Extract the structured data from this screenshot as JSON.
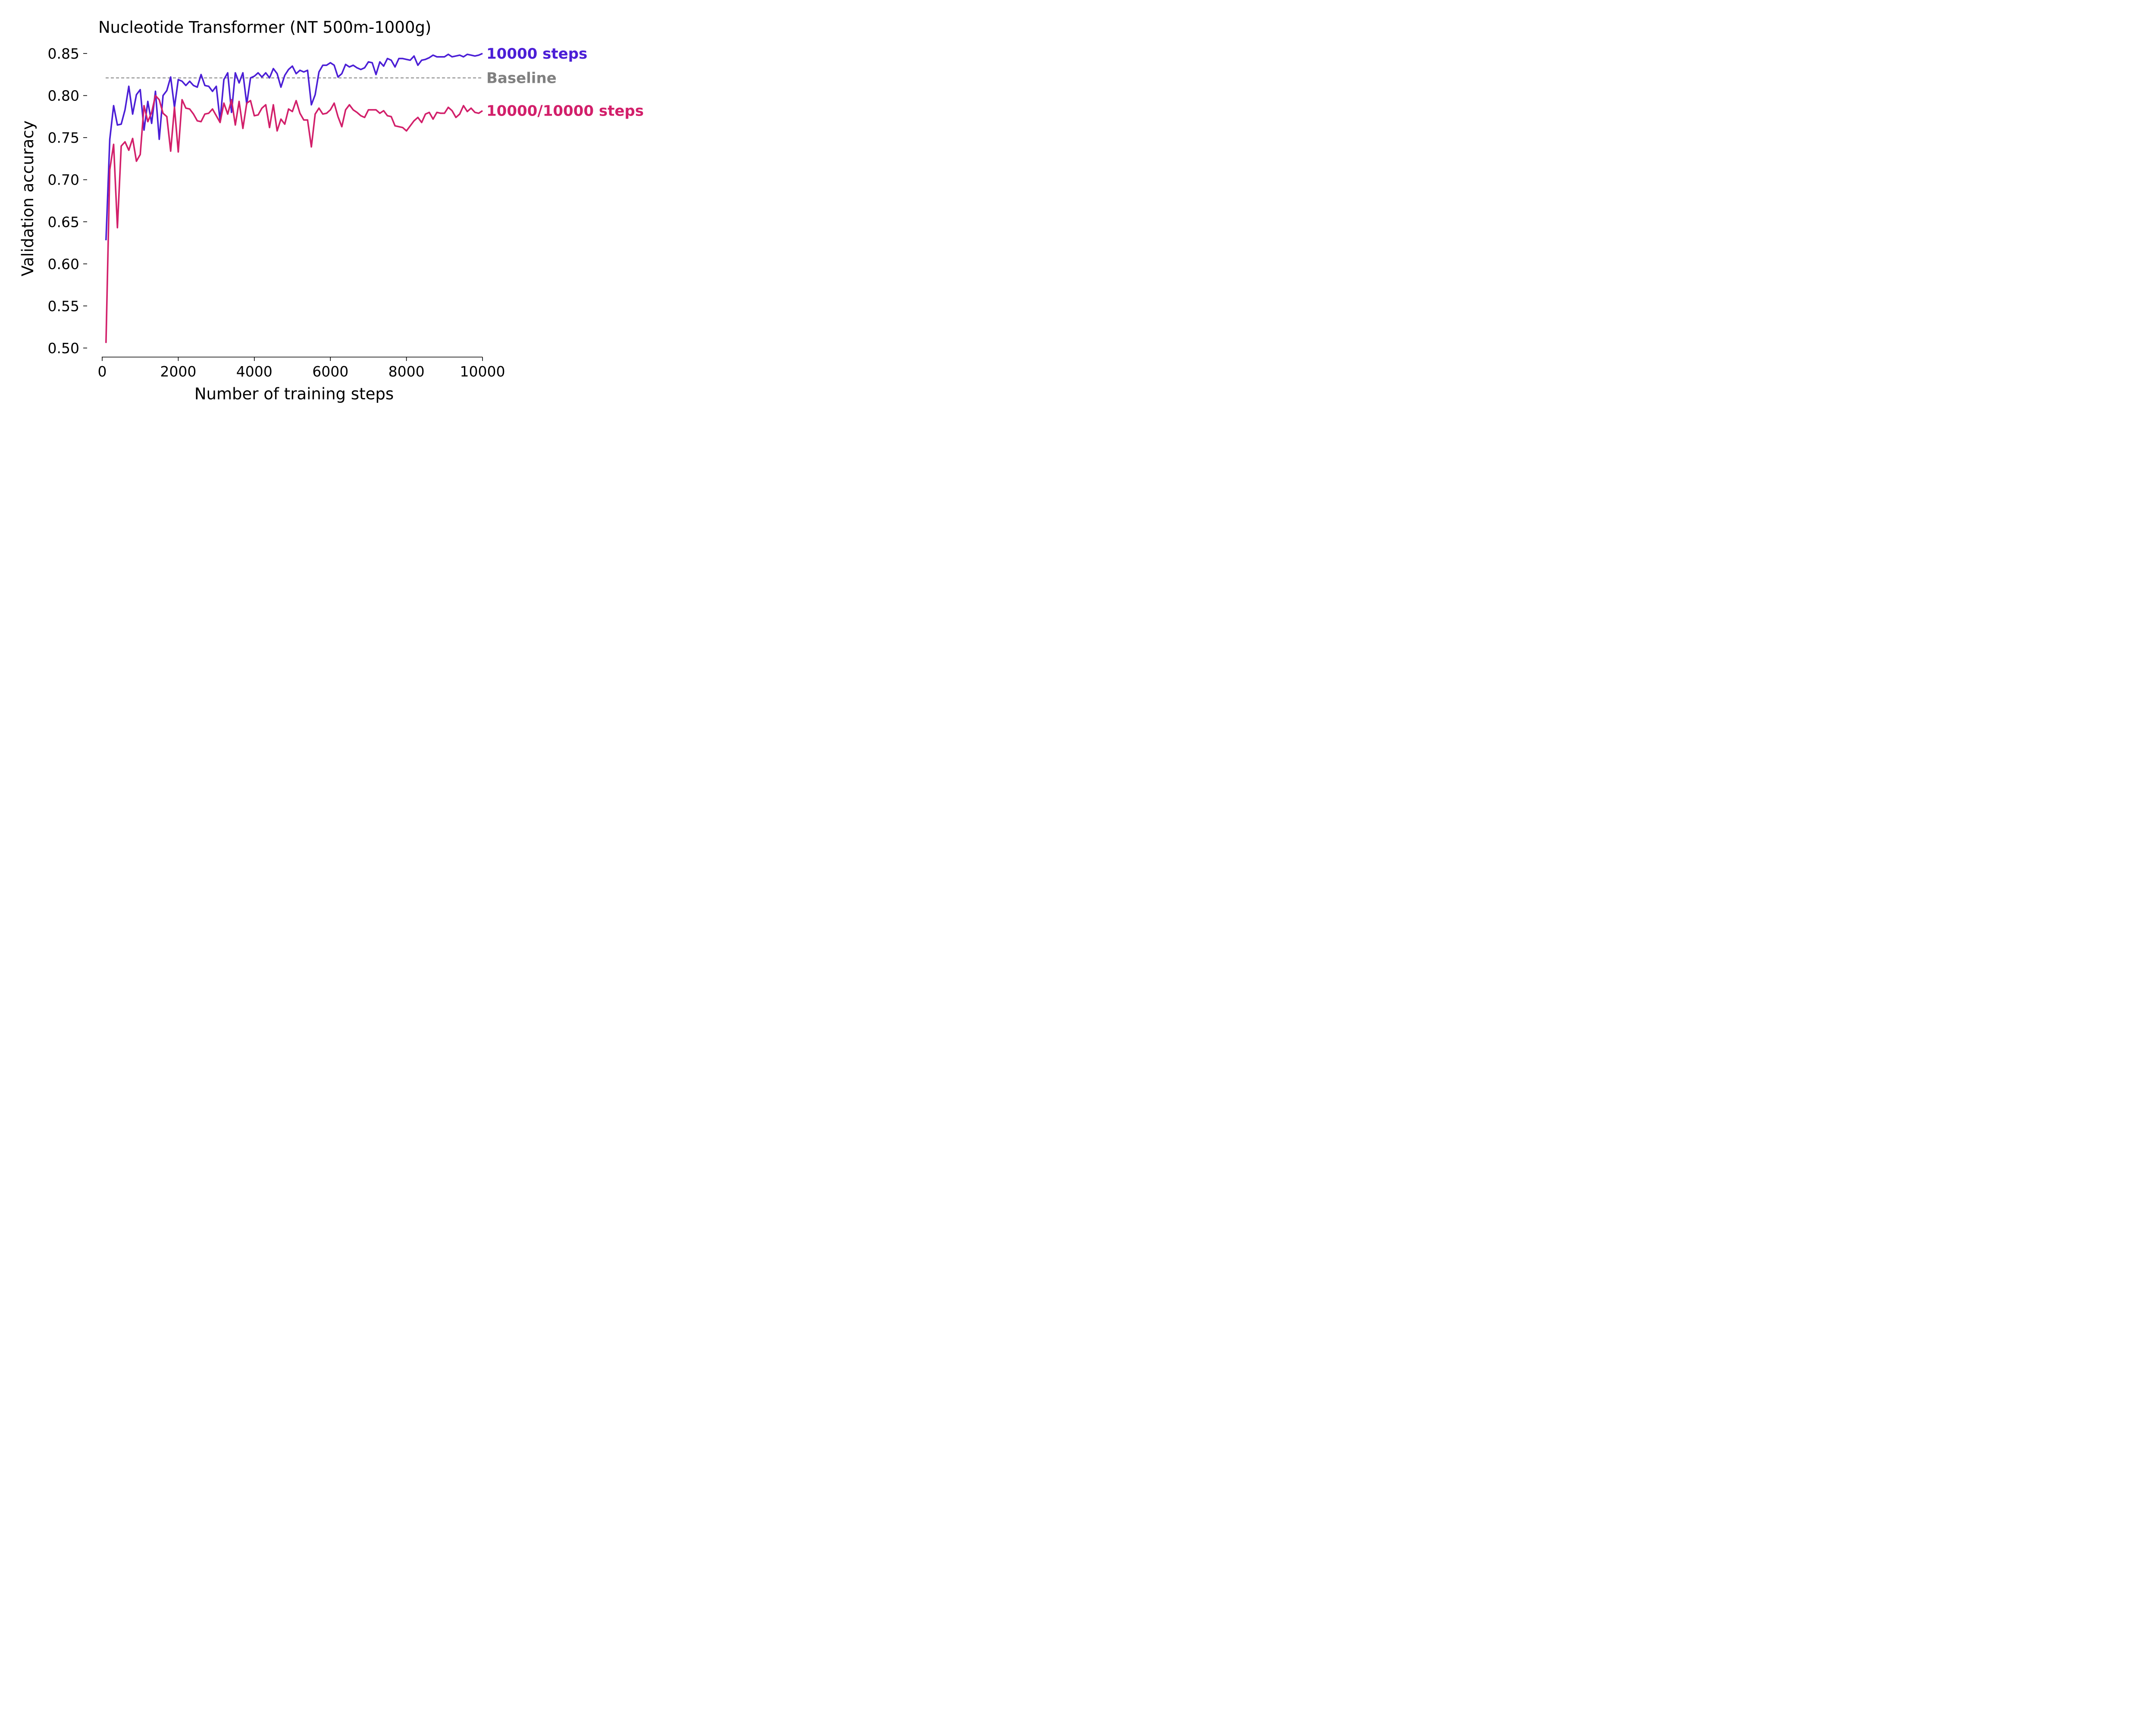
{
  "chart_data": {
    "type": "line",
    "title": "Nucleotide Transformer (NT 500m-1000g)",
    "xlabel": "Number of training steps",
    "ylabel": "Validation accuracy",
    "xlim": [
      0,
      10000
    ],
    "ylim": [
      0.5,
      0.85
    ],
    "x_ticks": [
      0,
      2000,
      4000,
      6000,
      8000,
      10000
    ],
    "y_ticks": [
      0.5,
      0.55,
      0.6,
      0.65,
      0.7,
      0.75,
      0.8,
      0.85
    ],
    "x_tick_labels": [
      "0",
      "2000",
      "4000",
      "6000",
      "8000",
      "10000"
    ],
    "y_tick_labels": [
      "0.50",
      "0.55",
      "0.60",
      "0.65",
      "0.70",
      "0.75",
      "0.80",
      "0.85"
    ],
    "grid": false,
    "legend": "direct labels at right end of lines",
    "x": [
      100,
      200,
      300,
      400,
      500,
      600,
      700,
      800,
      900,
      1000,
      1100,
      1200,
      1300,
      1400,
      1500,
      1600,
      1700,
      1800,
      1900,
      2000,
      2100,
      2200,
      2300,
      2400,
      2500,
      2600,
      2700,
      2800,
      2900,
      3000,
      3100,
      3200,
      3300,
      3400,
      3500,
      3600,
      3700,
      3800,
      3900,
      4000,
      4100,
      4200,
      4300,
      4400,
      4500,
      4600,
      4700,
      4800,
      4900,
      5000,
      5100,
      5200,
      5300,
      5400,
      5500,
      5600,
      5700,
      5800,
      5900,
      6000,
      6100,
      6200,
      6300,
      6400,
      6500,
      6600,
      6700,
      6800,
      6900,
      7000,
      7100,
      7200,
      7300,
      7400,
      7500,
      7600,
      7700,
      7800,
      7900,
      8000,
      8100,
      8200,
      8300,
      8400,
      8500,
      8600,
      8700,
      8800,
      8900,
      9000,
      9100,
      9200,
      9300,
      9400,
      9500,
      9600,
      9700,
      9800,
      9900,
      10000
    ],
    "series": [
      {
        "name": "10000 steps",
        "color": "#4b1ed6",
        "values": [
          0.628,
          0.748,
          0.788,
          0.765,
          0.766,
          0.783,
          0.811,
          0.778,
          0.801,
          0.807,
          0.759,
          0.793,
          0.767,
          0.805,
          0.748,
          0.8,
          0.806,
          0.822,
          0.786,
          0.819,
          0.817,
          0.812,
          0.817,
          0.812,
          0.81,
          0.825,
          0.812,
          0.811,
          0.805,
          0.811,
          0.77,
          0.819,
          0.827,
          0.78,
          0.827,
          0.815,
          0.827,
          0.79,
          0.821,
          0.823,
          0.827,
          0.822,
          0.827,
          0.821,
          0.832,
          0.826,
          0.81,
          0.824,
          0.831,
          0.835,
          0.826,
          0.83,
          0.828,
          0.83,
          0.789,
          0.801,
          0.828,
          0.836,
          0.836,
          0.839,
          0.836,
          0.822,
          0.826,
          0.837,
          0.834,
          0.836,
          0.833,
          0.831,
          0.833,
          0.84,
          0.839,
          0.825,
          0.84,
          0.835,
          0.844,
          0.842,
          0.834,
          0.844,
          0.844,
          0.843,
          0.842,
          0.847,
          0.836,
          0.842,
          0.843,
          0.845,
          0.848,
          0.846,
          0.846,
          0.846,
          0.849,
          0.846,
          0.847,
          0.848,
          0.846,
          0.849,
          0.848,
          0.847,
          0.848,
          0.85
        ]
      },
      {
        "name": "10000/10000 steps",
        "color": "#d21f6a",
        "values": [
          0.506,
          0.712,
          0.742,
          0.643,
          0.74,
          0.745,
          0.735,
          0.749,
          0.722,
          0.73,
          0.788,
          0.769,
          0.78,
          0.8,
          0.795,
          0.779,
          0.775,
          0.734,
          0.786,
          0.733,
          0.795,
          0.785,
          0.784,
          0.778,
          0.77,
          0.769,
          0.778,
          0.779,
          0.784,
          0.776,
          0.768,
          0.791,
          0.778,
          0.795,
          0.765,
          0.793,
          0.761,
          0.791,
          0.794,
          0.776,
          0.777,
          0.785,
          0.789,
          0.762,
          0.789,
          0.758,
          0.772,
          0.766,
          0.784,
          0.781,
          0.794,
          0.779,
          0.771,
          0.771,
          0.739,
          0.778,
          0.785,
          0.778,
          0.779,
          0.783,
          0.791,
          0.775,
          0.763,
          0.783,
          0.789,
          0.783,
          0.78,
          0.776,
          0.774,
          0.783,
          0.783,
          0.783,
          0.779,
          0.782,
          0.776,
          0.775,
          0.764,
          0.763,
          0.762,
          0.758,
          0.764,
          0.77,
          0.774,
          0.768,
          0.778,
          0.78,
          0.772,
          0.78,
          0.779,
          0.779,
          0.786,
          0.782,
          0.774,
          0.778,
          0.788,
          0.781,
          0.785,
          0.78,
          0.779,
          0.782
        ]
      }
    ],
    "reference_lines": [
      {
        "label": "Baseline",
        "y": 0.821,
        "color": "#808080",
        "style": "dashed"
      }
    ]
  }
}
